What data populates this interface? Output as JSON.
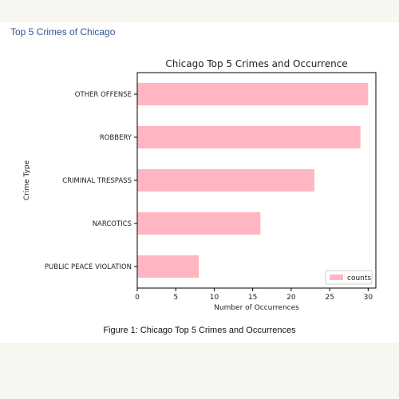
{
  "page": {
    "heading": "Top 5 Crimes of Chicago",
    "caption": "Figure 1: Chicago Top 5 Crimes and Occurrences"
  },
  "chart_data": {
    "type": "bar",
    "orientation": "horizontal",
    "title": "Chicago Top 5 Crimes and Occurrence",
    "xlabel": "Number of Occurrences",
    "ylabel": "Crime Type",
    "categories": [
      "OTHER OFFENSE",
      "ROBBERY",
      "CRIMINAL TRESPASS",
      "NARCOTICS",
      "PUBLIC PEACE VIOLATION"
    ],
    "series": [
      {
        "name": "counts",
        "values": [
          30,
          29,
          23,
          16,
          8
        ],
        "color": "#ffb6c1"
      }
    ],
    "xlim": [
      0,
      31
    ],
    "xticks": [
      "0",
      "5",
      "10",
      "15",
      "20",
      "25",
      "30"
    ],
    "grid": false,
    "legend": "bottom-right"
  }
}
